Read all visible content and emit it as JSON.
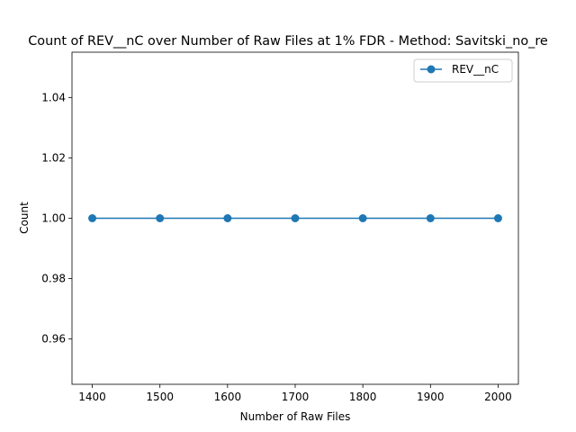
{
  "chart_data": {
    "type": "line",
    "title": "Count of REV__nC over Number of Raw Files at 1% FDR - Method: Savitski_no_re",
    "xlabel": "Number of Raw Files",
    "ylabel": "Count",
    "x": [
      1400,
      1500,
      1600,
      1700,
      1800,
      1900,
      2000
    ],
    "xticks": [
      1400,
      1500,
      1600,
      1700,
      1800,
      1900,
      2000
    ],
    "xtick_labels": [
      "1400",
      "1500",
      "1600",
      "1700",
      "1800",
      "1900",
      "2000"
    ],
    "xlim": [
      1370,
      2030
    ],
    "yticks": [
      0.96,
      0.98,
      1.0,
      1.02,
      1.04
    ],
    "ytick_labels": [
      "0.96",
      "0.98",
      "1.00",
      "1.02",
      "1.04"
    ],
    "ylim": [
      0.945,
      1.055
    ],
    "series": [
      {
        "name": "REV__nC",
        "values": [
          1,
          1,
          1,
          1,
          1,
          1,
          1
        ],
        "color": "#1f77b4",
        "marker": "circle"
      }
    ],
    "legend": {
      "position": "top-right"
    },
    "grid": false
  }
}
